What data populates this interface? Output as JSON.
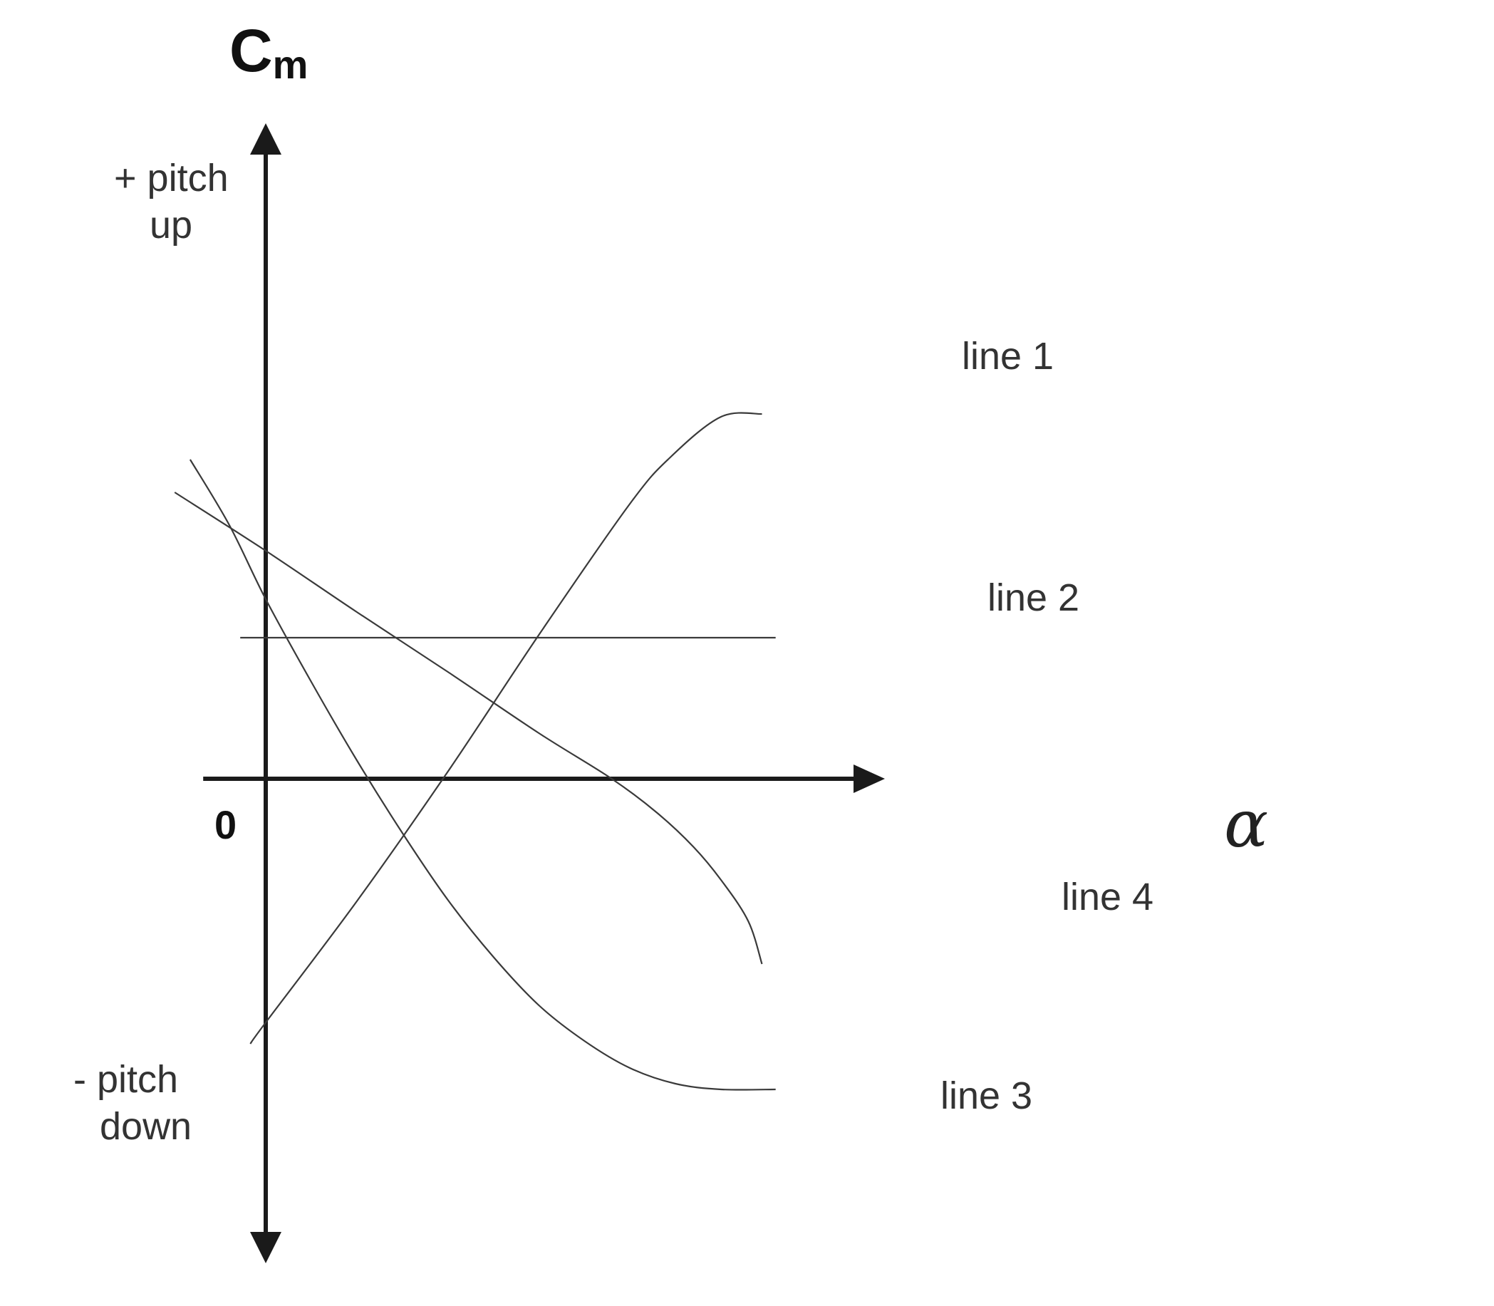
{
  "chart_data": {
    "type": "line",
    "title": "",
    "ylabel": {
      "main": "C",
      "sub": "m"
    },
    "xlabel": "α",
    "origin_label": "0",
    "y_annotations": {
      "positive": [
        "+ pitch",
        "up"
      ],
      "negative": [
        "- pitch",
        "down"
      ]
    },
    "xlim": [
      -1.0,
      6.8
    ],
    "ylim": [
      -3.4,
      4.6
    ],
    "grid": false,
    "series": [
      {
        "name": "line 1",
        "x": [
          -0.17,
          0.0,
          1.0,
          2.0,
          3.0,
          4.0,
          4.45,
          5.0,
          5.45
        ],
        "y": [
          -1.86,
          -1.71,
          -0.86,
          0.05,
          1.01,
          1.93,
          2.26,
          2.54,
          2.56
        ]
      },
      {
        "name": "line 2",
        "x": [
          -0.28,
          5.6
        ],
        "y": [
          0.99,
          0.99
        ]
      },
      {
        "name": "line 3",
        "x": [
          -0.83,
          -0.4,
          0.0,
          0.5,
          1.0,
          1.5,
          2.0,
          2.5,
          3.0,
          3.5,
          4.0,
          4.5,
          5.0,
          5.6
        ],
        "y": [
          2.24,
          1.78,
          1.26,
          0.68,
          0.13,
          -0.38,
          -0.85,
          -1.25,
          -1.59,
          -1.84,
          -2.03,
          -2.14,
          -2.18,
          -2.18
        ]
      },
      {
        "name": "line 4",
        "x": [
          -1.0,
          0.0,
          1.0,
          2.0,
          3.0,
          3.8,
          4.3,
          4.7,
          5.0,
          5.3,
          5.45
        ],
        "y": [
          2.01,
          1.6,
          1.17,
          0.75,
          0.32,
          0.0,
          -0.24,
          -0.48,
          -0.71,
          -1.0,
          -1.3
        ]
      }
    ],
    "line_label_positions": {
      "line 1": "above right end",
      "line 2": "above right end",
      "line 3": "below right end",
      "line 4": "right of right end"
    },
    "color": "#3a3a3a",
    "axis_color": "#1a1a1a"
  }
}
